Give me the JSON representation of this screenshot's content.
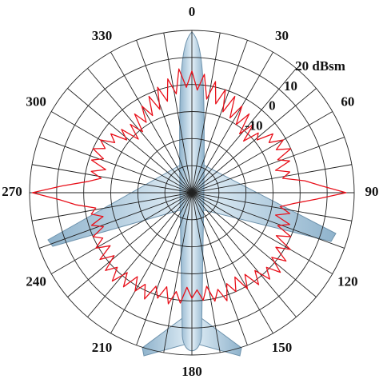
{
  "chart_data": {
    "type": "polar-line",
    "rlim": [
      -40,
      20
    ],
    "rticks": [
      {
        "value": -30,
        "label": null
      },
      {
        "value": -20,
        "label": null
      },
      -10,
      0,
      10,
      {
        "value": 20,
        "label": "20 dBsm"
      }
    ],
    "thetagrid": [
      0,
      10,
      20,
      30,
      40,
      50,
      60,
      70,
      80,
      90,
      100,
      110,
      120,
      130,
      140,
      150,
      160,
      170,
      180,
      190,
      200,
      210,
      220,
      230,
      240,
      250,
      260,
      270,
      280,
      290,
      300,
      310,
      320,
      330,
      340,
      350
    ],
    "thetaticks": [
      0,
      30,
      60,
      90,
      120,
      150,
      180,
      210,
      240,
      270,
      300,
      330
    ],
    "theta": [
      0,
      3,
      6,
      9,
      12,
      15,
      18,
      21,
      24,
      27,
      30,
      33,
      36,
      39,
      42,
      45,
      48,
      51,
      54,
      57,
      60,
      63,
      66,
      69,
      72,
      75,
      78,
      81,
      84,
      87,
      90,
      93,
      96,
      99,
      102,
      105,
      108,
      111,
      114,
      117,
      120,
      123,
      126,
      129,
      132,
      135,
      138,
      141,
      144,
      147,
      150,
      153,
      156,
      159,
      162,
      165,
      168,
      171,
      174,
      177,
      180,
      183,
      186,
      189,
      192,
      195,
      198,
      201,
      204,
      207,
      210,
      213,
      216,
      219,
      222,
      225,
      228,
      231,
      234,
      237,
      240,
      243,
      246,
      249,
      252,
      255,
      258,
      261,
      264,
      267,
      270,
      273,
      276,
      279,
      282,
      285,
      288,
      291,
      294,
      297,
      300,
      303,
      306,
      309,
      312,
      315,
      318,
      321,
      324,
      327,
      330,
      333,
      336,
      339,
      342,
      345,
      348,
      351,
      354,
      357
    ],
    "series": [
      {
        "color": "#e8111b",
        "values": [
          5,
          -2,
          4,
          -5,
          2,
          -6,
          0,
          -8,
          -1,
          -9,
          -3,
          -10,
          -4,
          -12,
          -6,
          -13,
          -7,
          -9,
          -3,
          -6,
          -1,
          -5,
          0,
          -6,
          -2,
          -8,
          -3,
          -6,
          2,
          8,
          17,
          6,
          -2,
          -7,
          -3,
          -8,
          -2,
          -6,
          0,
          -5,
          2,
          -3,
          3,
          -2,
          4,
          -1,
          3,
          -3,
          2,
          -4,
          1,
          -5,
          0,
          -4,
          2,
          -3,
          1,
          -5,
          0,
          -4,
          -1,
          -5,
          1,
          -3,
          2,
          -4,
          1,
          -3,
          3,
          -2,
          2,
          -3,
          3,
          -2,
          4,
          -1,
          3,
          -3,
          2,
          -4,
          1,
          -3,
          0,
          -5,
          -1,
          -6,
          -2,
          -4,
          3,
          9,
          19,
          8,
          -1,
          -6,
          -2,
          -7,
          -1,
          -5,
          0,
          -4,
          -1,
          -6,
          -3,
          -9,
          -5,
          -12,
          -6,
          -11,
          -4,
          -9,
          -3,
          -8,
          -1,
          -7,
          1,
          -5,
          3,
          -3,
          6,
          -1
        ]
      }
    ]
  }
}
